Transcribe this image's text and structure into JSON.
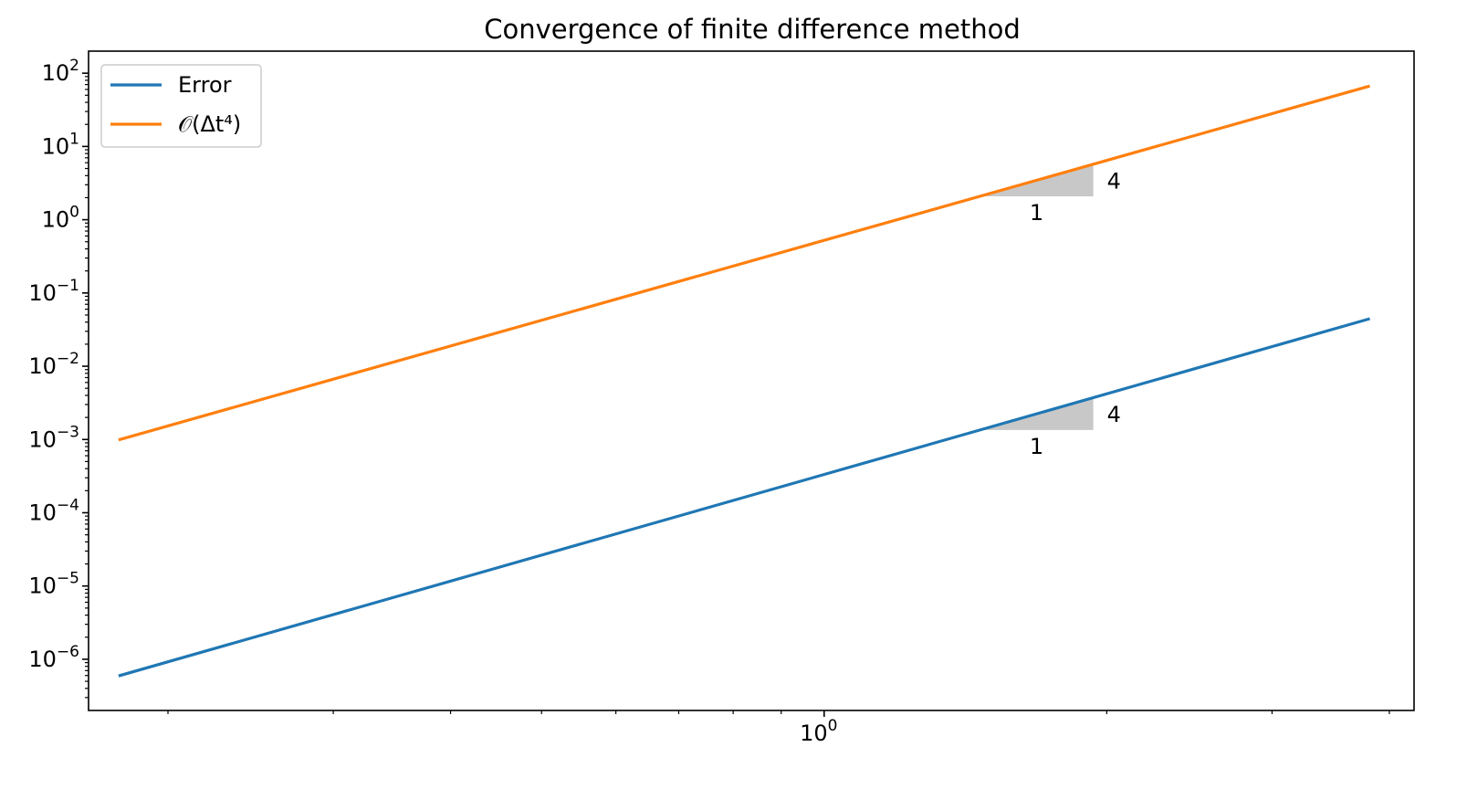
{
  "chart_data": {
    "type": "line",
    "title": "Convergence of finite difference method",
    "xlabel": "",
    "ylabel": "",
    "x_scale": "log",
    "y_scale": "log",
    "xlim": [
      0.1646,
      4.25
    ],
    "ylim": [
      2e-07,
      200
    ],
    "x_tick_labels": [
      {
        "value": 1,
        "label": "10",
        "exp": "0"
      }
    ],
    "x_minor_ticks": [
      0.2,
      0.3,
      0.4,
      0.5,
      0.6,
      0.7,
      0.8,
      0.9,
      2,
      3,
      4
    ],
    "y_tick_labels": [
      {
        "value": 100,
        "label": "10",
        "exp": "2"
      },
      {
        "value": 10,
        "label": "10",
        "exp": "1"
      },
      {
        "value": 1,
        "label": "10",
        "exp": "0"
      },
      {
        "value": 0.1,
        "label": "10",
        "exp": "−1"
      },
      {
        "value": 0.01,
        "label": "10",
        "exp": "−2"
      },
      {
        "value": 0.001,
        "label": "10",
        "exp": "−3"
      },
      {
        "value": 0.0001,
        "label": "10",
        "exp": "−4"
      },
      {
        "value": 1e-05,
        "label": "10",
        "exp": "−5"
      },
      {
        "value": 1e-06,
        "label": "10",
        "exp": "−6"
      }
    ],
    "series": [
      {
        "name": "Error",
        "color": "#1f77b4",
        "x": [
          0.1778,
          3.8
        ],
        "y": [
          6e-07,
          0.044
        ]
      },
      {
        "name": "𝒪(Δt⁴)",
        "color": "#ff7f0e",
        "x": [
          0.1778,
          3.8
        ],
        "y": [
          0.001,
          66
        ]
      }
    ],
    "legend": {
      "placement": "top-left"
    },
    "grid": false,
    "slope_triangles": [
      {
        "series": 1,
        "x_start": 1.465,
        "x_end": 1.935,
        "run_label": "1",
        "rise_label": "4",
        "fill": "#c8c8c8"
      },
      {
        "series": 0,
        "x_start": 1.465,
        "x_end": 1.935,
        "run_label": "1",
        "rise_label": "4",
        "fill": "#c8c8c8"
      }
    ]
  }
}
